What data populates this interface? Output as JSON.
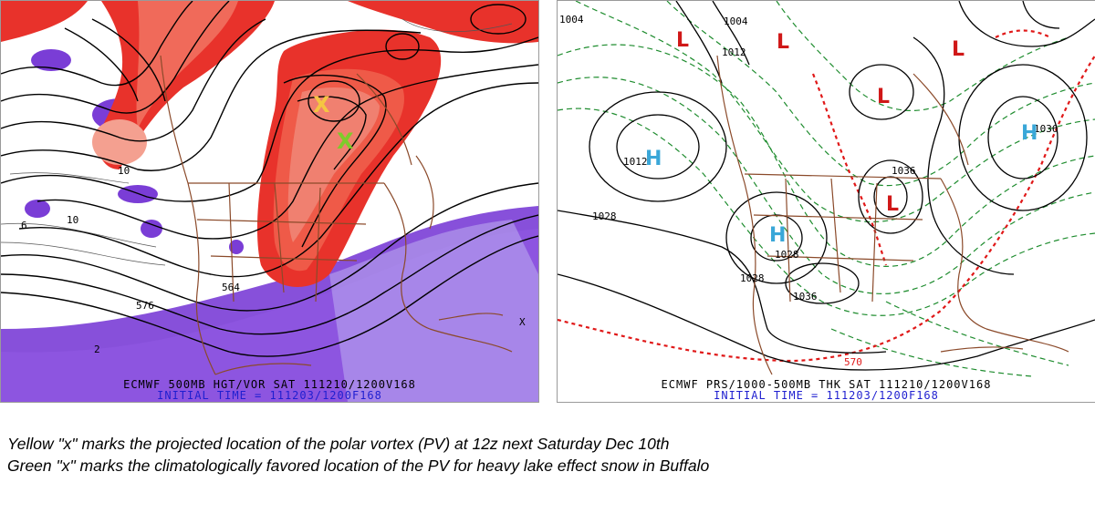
{
  "left_panel": {
    "footer_line1": "ECMWF 500MB HGT/VOR SAT 111210/1200V168",
    "footer_line2": "INITIAL TIME = 111203/1200F168",
    "contour_labels": [
      "564",
      "576",
      "10",
      "10",
      "6",
      "2",
      "X"
    ],
    "markers": [
      {
        "name": "yellow-x",
        "symbol": "X",
        "color": "#f5c542"
      },
      {
        "name": "green-x",
        "symbol": "X",
        "color": "#7ecb2a"
      }
    ],
    "colors": {
      "vorticity_positive": "#e8322b",
      "vorticity_negative": "#7a3dd6",
      "borders": "#8b4a2a"
    }
  },
  "right_panel": {
    "footer_line1": "ECMWF PRS/1000-500MB THK SAT 111210/1200V168",
    "footer_line2": "INITIAL TIME = 111203/1200F168",
    "pressure_labels": [
      "1004",
      "1004",
      "1012",
      "1012",
      "1028",
      "1028",
      "1036",
      "1036",
      "1036",
      "1028"
    ],
    "thickness_label": "570",
    "centers": [
      {
        "symbol": "H",
        "color": "#3aa7d8"
      },
      {
        "symbol": "H",
        "color": "#3aa7d8"
      },
      {
        "symbol": "H",
        "color": "#3aa7d8"
      },
      {
        "symbol": "L",
        "color": "#d01818"
      },
      {
        "symbol": "L",
        "color": "#d01818"
      },
      {
        "symbol": "L",
        "color": "#d01818"
      },
      {
        "symbol": "L",
        "color": "#d01818"
      },
      {
        "symbol": "L",
        "color": "#d01818"
      }
    ],
    "colors": {
      "isobars": "#000000",
      "thickness": "#1e8c2e",
      "freezing_line": "#e01818",
      "borders": "#8b4a2a"
    }
  },
  "caption": {
    "line1": "Yellow \"x\" marks the projected location of the polar vortex (PV) at 12z next Saturday Dec 10th",
    "line2": "Green \"x\" marks the climatologically favored location of the PV for heavy lake effect snow in Buffalo"
  }
}
